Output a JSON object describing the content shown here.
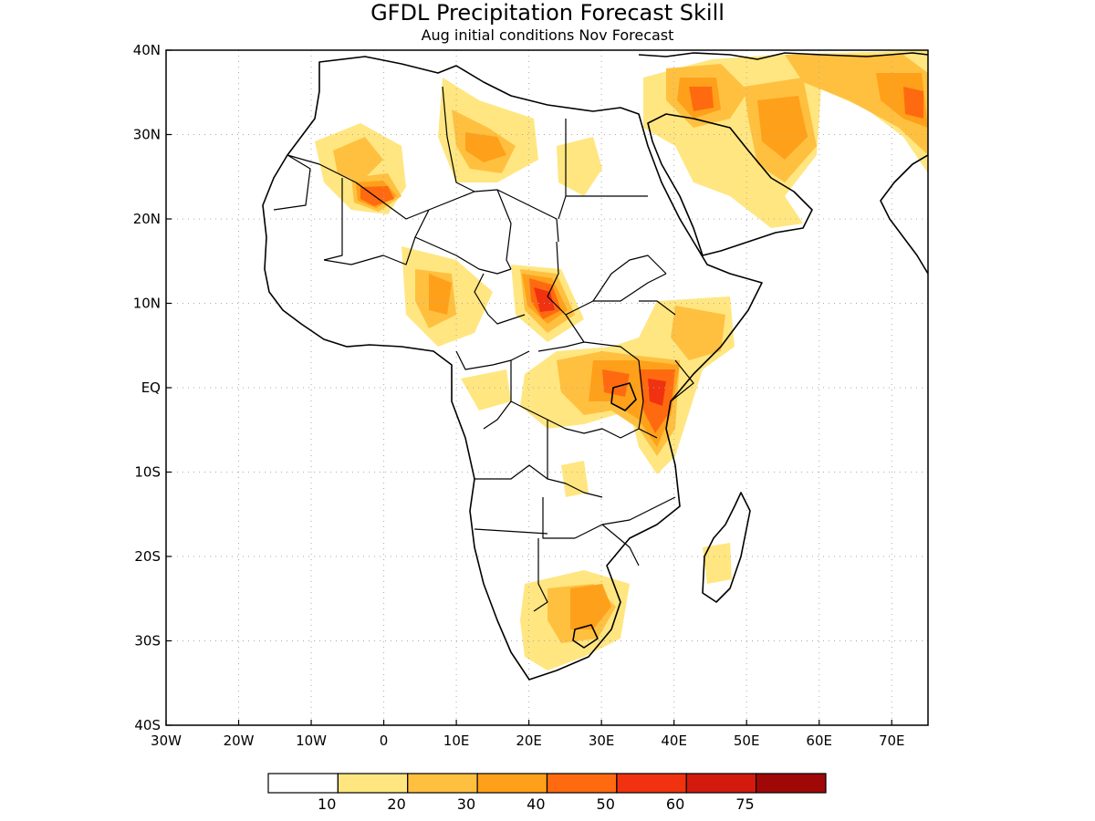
{
  "title": "GFDL Precipitation Forecast Skill",
  "subtitle": "Aug initial conditions  Nov Forecast",
  "map": {
    "region": "Africa",
    "lon_range": [
      -30,
      75
    ],
    "lat_range": [
      -40,
      40
    ],
    "grid": true,
    "x_ticks": [
      "30W",
      "20W",
      "10W",
      "0",
      "10E",
      "20E",
      "30E",
      "40E",
      "50E",
      "60E",
      "70E"
    ],
    "y_ticks": [
      "40N",
      "30N",
      "20N",
      "10N",
      "EQ",
      "10S",
      "20S",
      "30S",
      "40S"
    ]
  },
  "colorbar": {
    "labels": [
      "10",
      "20",
      "30",
      "40",
      "50",
      "60",
      "75"
    ],
    "colors": [
      "#ffffff",
      "#ffe680",
      "#ffc040",
      "#ffa01a",
      "#ff6a10",
      "#f03210",
      "#d21a0e",
      "#a00808"
    ]
  },
  "colors": {
    "land_edge": "#000000",
    "grid": "#aaaaaa"
  }
}
